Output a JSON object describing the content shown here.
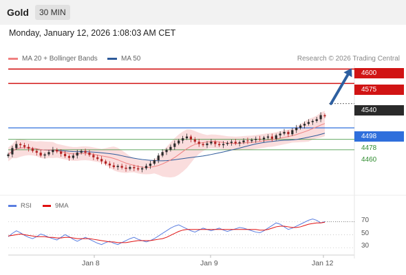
{
  "header": {
    "title": "Gold",
    "timeframe": "30 MIN",
    "datetime": "Monday, January 12, 2026 1:08:03 AM CET"
  },
  "legend": {
    "ma20_label": "MA 20 + Bollinger Bands",
    "ma50_label": "MA 50",
    "credit": "Research © 2026 Trading Central"
  },
  "colors": {
    "resistance": "#d11414",
    "support": "#2f6fdc",
    "current": "#2a2a2a",
    "minor_support": "#2e8b2e",
    "ma20": "#f08080",
    "ma50": "#2d5a9a",
    "bollinger_fill": "#f8d2d2",
    "candle_up": "#2b2b2b",
    "candle_down": "#b22222",
    "rsi": "#5a7ee0",
    "rsi_ma": "#e01010",
    "arrow": "#2d5fa0"
  },
  "price_levels": [
    {
      "label": "4600",
      "kind": "resistance"
    },
    {
      "label": "4575",
      "kind": "resistance"
    },
    {
      "label": "4540",
      "kind": "current"
    },
    {
      "label": "4498",
      "kind": "support"
    },
    {
      "label": "4478",
      "kind": "minor"
    },
    {
      "label": "4460",
      "kind": "minor"
    }
  ],
  "rsi_panel": {
    "rsi_label": "RSI",
    "ma_label": "9MA",
    "ticks": [
      "70",
      "50",
      "30"
    ]
  },
  "x_axis": {
    "ticks": [
      "Jan 8",
      "Jan 9",
      "Jan 12"
    ]
  },
  "chart_data": {
    "type": "candlestick",
    "instrument": "Gold",
    "timeframe": "30 MIN",
    "y_range": [
      4380,
      4610
    ],
    "horizontal_levels": [
      4600,
      4575,
      4540,
      4498,
      4478,
      4460
    ],
    "projection_target": 4600,
    "close_series": [
      4452,
      4463,
      4470,
      4468,
      4465,
      4462,
      4458,
      4455,
      4450,
      4452,
      4456,
      4460,
      4457,
      4453,
      4449,
      4446,
      4450,
      4455,
      4458,
      4455,
      4451,
      4447,
      4444,
      4440,
      4436,
      4433,
      4430,
      4432,
      4429,
      4427,
      4430,
      4428,
      4426,
      4428,
      4432,
      4436,
      4442,
      4450,
      4456,
      4460,
      4465,
      4471,
      4476,
      4480,
      4483,
      4478,
      4474,
      4470,
      4468,
      4471,
      4474,
      4470,
      4468,
      4470,
      4472,
      4474,
      4471,
      4473,
      4476,
      4475,
      4477,
      4479,
      4478,
      4481,
      4483,
      4479,
      4485,
      4488,
      4491,
      4487,
      4494,
      4498,
      4502,
      4505,
      4508,
      4510,
      4513,
      4520,
      4518
    ],
    "rsi_series": [
      47,
      52,
      56,
      53,
      49,
      46,
      44,
      47,
      51,
      49,
      46,
      44,
      42,
      46,
      50,
      47,
      43,
      40,
      43,
      46,
      43,
      40,
      37,
      35,
      38,
      40,
      37,
      35,
      38,
      41,
      44,
      46,
      43,
      41,
      39,
      41,
      44,
      48,
      52,
      56,
      60,
      63,
      65,
      62,
      59,
      56,
      54,
      57,
      60,
      58,
      56,
      58,
      60,
      57,
      55,
      57,
      59,
      61,
      60,
      58,
      56,
      54,
      53,
      56,
      60,
      64,
      68,
      66,
      62,
      58,
      60,
      63,
      66,
      69,
      72,
      74,
      72,
      68,
      70
    ],
    "rsi_ma_series": [
      48,
      49,
      50,
      51,
      50,
      49,
      48,
      47,
      47,
      47,
      46,
      46,
      45,
      45,
      46,
      46,
      45,
      44,
      44,
      44,
      44,
      43,
      42,
      41,
      40,
      39,
      39,
      38,
      38,
      38,
      39,
      40,
      41,
      41,
      41,
      41,
      42,
      43,
      44,
      46,
      49,
      52,
      55,
      57,
      58,
      58,
      58,
      58,
      58,
      58,
      58,
      58,
      58,
      58,
      58,
      58,
      58,
      58,
      58,
      58,
      58,
      58,
      57,
      57,
      58,
      60,
      62,
      63,
      63,
      62,
      61,
      61,
      62,
      64,
      66,
      67,
      68,
      68,
      69
    ],
    "rsi_range": [
      20,
      85
    ],
    "rsi_levels": [
      70,
      50,
      30
    ],
    "x_tick_labels": [
      "Jan 8",
      "Jan 9",
      "Jan 12"
    ]
  }
}
